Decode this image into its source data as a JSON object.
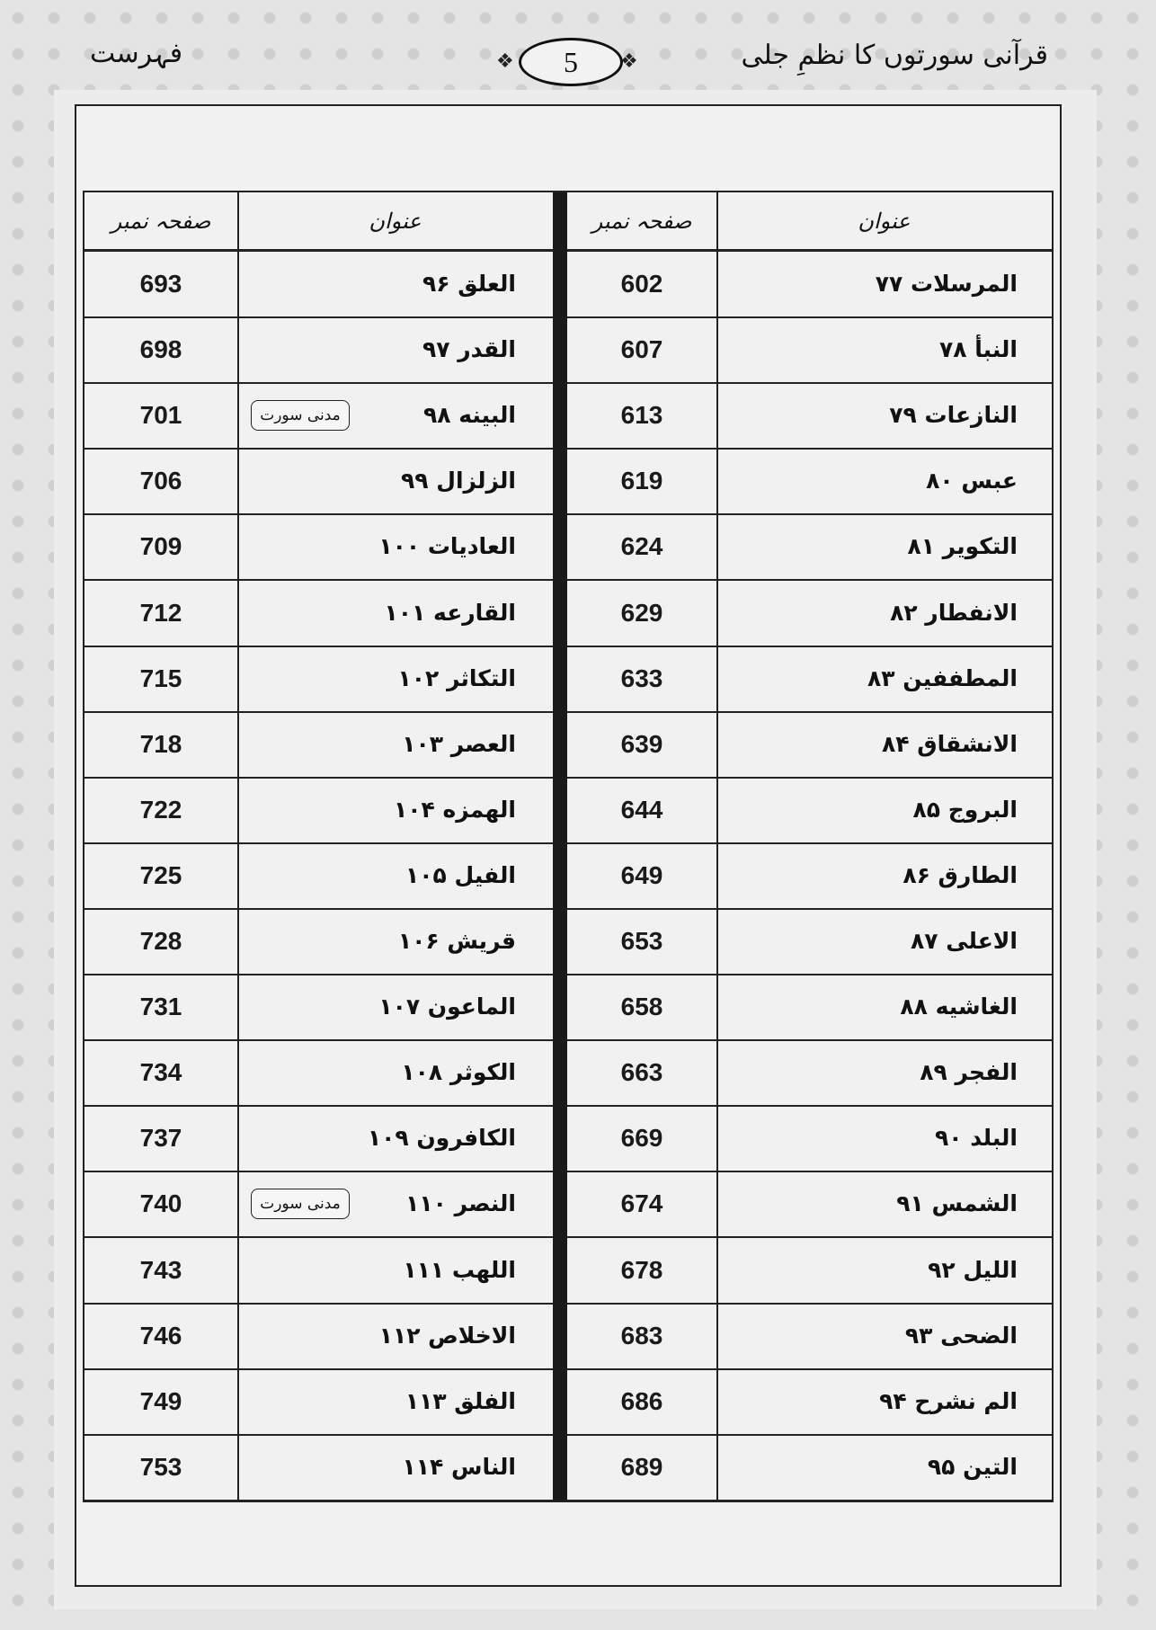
{
  "header": {
    "book_title": "قرآنی سورتوں کا نظمِ جلی",
    "section": "فہرست",
    "page_number": "5"
  },
  "table": {
    "col_title": "عنوان",
    "col_page": "صفحہ نمبر",
    "badge_text": "مدنی سورت",
    "right_column": [
      {
        "title": "المرسلات ۷۷",
        "page": "602"
      },
      {
        "title": "النبأ ۷۸",
        "page": "607"
      },
      {
        "title": "النازعات ۷۹",
        "page": "613"
      },
      {
        "title": "عبس ۸۰",
        "page": "619"
      },
      {
        "title": "التکویر ۸۱",
        "page": "624"
      },
      {
        "title": "الانفطار ۸۲",
        "page": "629"
      },
      {
        "title": "المطففین ۸۳",
        "page": "633"
      },
      {
        "title": "الانشقاق ۸۴",
        "page": "639"
      },
      {
        "title": "البروج ۸۵",
        "page": "644"
      },
      {
        "title": "الطارق ۸۶",
        "page": "649"
      },
      {
        "title": "الاعلی ۸۷",
        "page": "653"
      },
      {
        "title": "الغاشیه ۸۸",
        "page": "658"
      },
      {
        "title": "الفجر ۸۹",
        "page": "663"
      },
      {
        "title": "البلد ۹۰",
        "page": "669"
      },
      {
        "title": "الشمس ۹۱",
        "page": "674"
      },
      {
        "title": "اللیل ۹۲",
        "page": "678"
      },
      {
        "title": "الضحی ۹۳",
        "page": "683"
      },
      {
        "title": "الم نشرح ۹۴",
        "page": "686"
      },
      {
        "title": "التین ۹۵",
        "page": "689"
      }
    ],
    "left_column": [
      {
        "title": "العلق ۹۶",
        "page": "693",
        "madani": false
      },
      {
        "title": "القدر ۹۷",
        "page": "698",
        "madani": false
      },
      {
        "title": "البینه ۹۸",
        "page": "701",
        "madani": true
      },
      {
        "title": "الزلزال ۹۹",
        "page": "706",
        "madani": false
      },
      {
        "title": "العادیات ۱۰۰",
        "page": "709",
        "madani": false
      },
      {
        "title": "القارعه ۱۰۱",
        "page": "712",
        "madani": false
      },
      {
        "title": "التکاثر ۱۰۲",
        "page": "715",
        "madani": false
      },
      {
        "title": "العصر ۱۰۳",
        "page": "718",
        "madani": false
      },
      {
        "title": "الهمزه ۱۰۴",
        "page": "722",
        "madani": false
      },
      {
        "title": "الفیل ۱۰۵",
        "page": "725",
        "madani": false
      },
      {
        "title": "قریش ۱۰۶",
        "page": "728",
        "madani": false
      },
      {
        "title": "الماعون ۱۰۷",
        "page": "731",
        "madani": false
      },
      {
        "title": "الکوثر ۱۰۸",
        "page": "734",
        "madani": false
      },
      {
        "title": "الکافرون ۱۰۹",
        "page": "737",
        "madani": false
      },
      {
        "title": "النصر ۱۱۰",
        "page": "740",
        "madani": true
      },
      {
        "title": "اللهب ۱۱۱",
        "page": "743",
        "madani": false
      },
      {
        "title": "الاخلاص ۱۱۲",
        "page": "746",
        "madani": false
      },
      {
        "title": "الفلق ۱۱۳",
        "page": "749",
        "madani": false
      },
      {
        "title": "الناس ۱۱۴",
        "page": "753",
        "madani": false
      }
    ]
  }
}
